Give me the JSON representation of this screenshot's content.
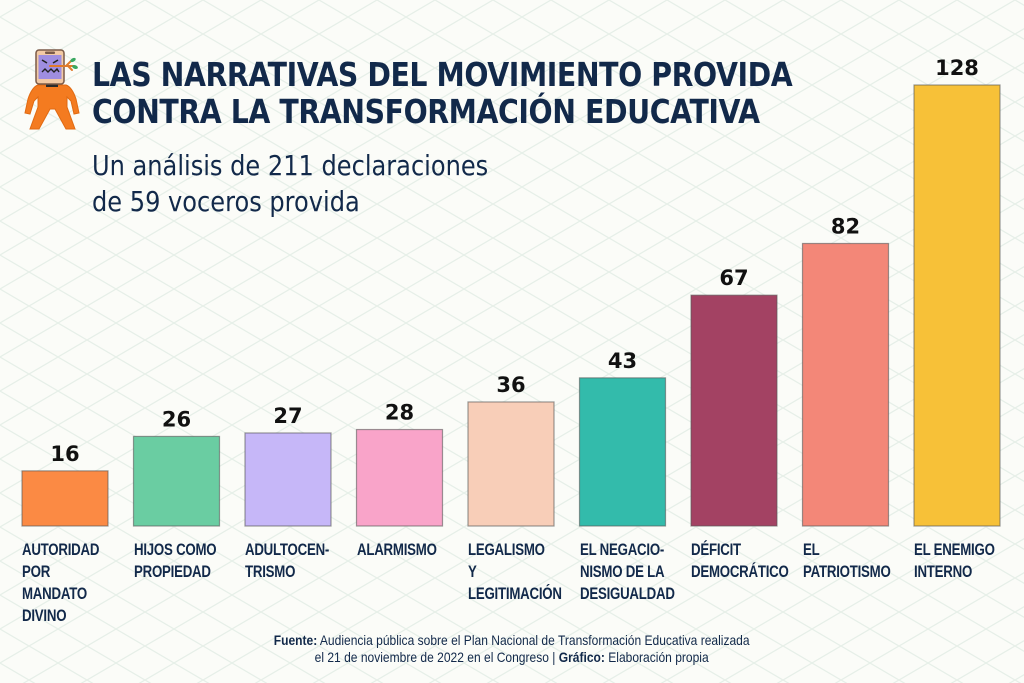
{
  "header": {
    "title_line1": "LAS NARRATIVAS DEL MOVIMIENTO PROVIDA",
    "title_line2": "CONTRA LA TRANSFORMACIÓN EDUCATIVA",
    "subtitle_line1": "Un análisis de 211 declaraciones",
    "subtitle_line2": "de 59 voceros provida",
    "mascot_icon": "angry-phone-head-character-icon"
  },
  "footer": {
    "source_label": "Fuente:",
    "source_text_line1": " Audiencia pública sobre el Plan Nacional de Transformación Educativa realizada",
    "source_text_line2": "el 21 de noviembre de 2022 en el Congreso | ",
    "graphic_label": "Gráfico:",
    "graphic_text": " Elaboración propia"
  },
  "chart_data": {
    "type": "bar",
    "title": "LAS NARRATIVAS DEL MOVIMIENTO PROVIDA CONTRA LA TRANSFORMACIÓN EDUCATIVA",
    "subtitle": "Un análisis de 211 declaraciones de 59 voceros provida",
    "xlabel": "",
    "ylabel": "",
    "ylim": [
      0,
      128
    ],
    "grid": false,
    "legend": "none",
    "categories": [
      "AUTORIDAD\nPOR MANDATO\nDIVINO",
      "HIJOS COMO\nPROPIEDAD",
      "ADULTOCEN-\nTRISMO",
      "ALARMISMO",
      "LEGALISMO Y\nLEGITIMACIÓN",
      "EL NEGACIO-\nNISMO DE LA\nDESIGUALDAD",
      "DÉFICIT\nDEMOCRÁTICO",
      "EL PATRIOTISMO",
      "EL ENEMIGO\nINTERNO"
    ],
    "values": [
      16,
      26,
      27,
      28,
      36,
      43,
      67,
      82,
      128
    ],
    "colors": [
      "#fb8a44",
      "#6acda2",
      "#c6b7f8",
      "#f9a4c9",
      "#f8ceb8",
      "#33bbab",
      "#a34263",
      "#f38778",
      "#f7c138"
    ],
    "data_labels": [
      "16",
      "26",
      "27",
      "28",
      "36",
      "43",
      "67",
      "82",
      "128"
    ]
  }
}
